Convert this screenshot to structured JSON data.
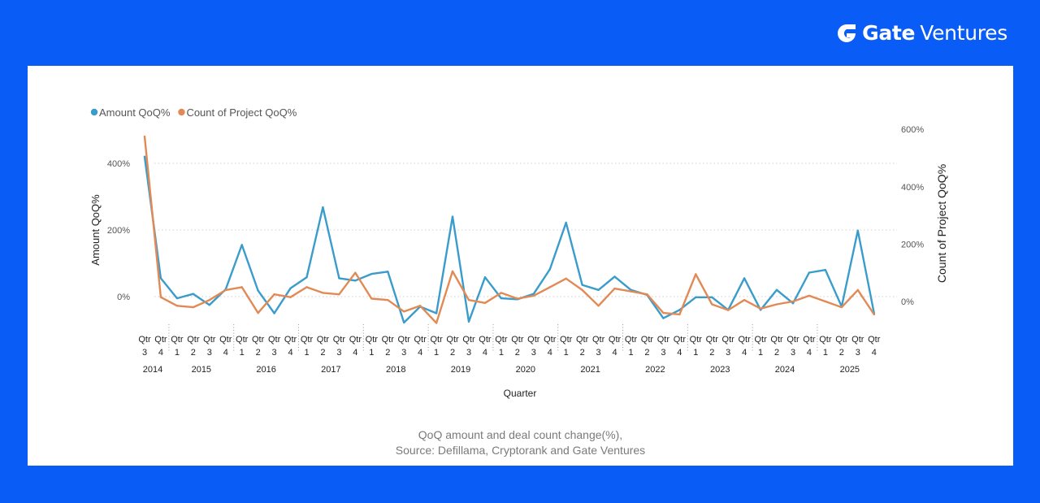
{
  "brand": {
    "strong": "Gate",
    "light": "Ventures"
  },
  "caption": {
    "line1": "QoQ amount and deal count change(%),",
    "line2": "Source: Defillama, Cryptorank and Gate Ventures"
  },
  "chart_data": {
    "type": "line",
    "title": "",
    "xlabel": "Quarter",
    "ylabel_left": "Amount QoQ%",
    "ylabel_right": "Count of Project QoQ%",
    "legend_position": "top-left",
    "grid": true,
    "y_left_ticks": [
      0,
      200,
      400
    ],
    "y_left_tick_labels": [
      "0%",
      "200%",
      "400%"
    ],
    "y_right_ticks": [
      0,
      200,
      400,
      600
    ],
    "y_right_tick_labels": [
      "0%",
      "200%",
      "400%",
      "600%"
    ],
    "quarter_prefix": "Qtr",
    "quarters": [
      "Qtr 3",
      "Qtr 4",
      "Qtr 1",
      "Qtr 2",
      "Qtr 3",
      "Qtr 4",
      "Qtr 1",
      "Qtr 2",
      "Qtr 3",
      "Qtr 4",
      "Qtr 1",
      "Qtr 2",
      "Qtr 3",
      "Qtr 4",
      "Qtr 1",
      "Qtr 2",
      "Qtr 3",
      "Qtr 4",
      "Qtr 1",
      "Qtr 2",
      "Qtr 3",
      "Qtr 4",
      "Qtr 1",
      "Qtr 2",
      "Qtr 3",
      "Qtr 4",
      "Qtr 1",
      "Qtr 2",
      "Qtr 3",
      "Qtr 4",
      "Qtr 1",
      "Qtr 2",
      "Qtr 3",
      "Qtr 4",
      "Qtr 1",
      "Qtr 2",
      "Qtr 3",
      "Qtr 4",
      "Qtr 1",
      "Qtr 2",
      "Qtr 3",
      "Qtr 4",
      "Qtr 1",
      "Qtr 2",
      "Qtr 3",
      "Qtr 4"
    ],
    "years": [
      {
        "label": "2014",
        "count": 2
      },
      {
        "label": "2015",
        "count": 4
      },
      {
        "label": "2016",
        "count": 4
      },
      {
        "label": "2017",
        "count": 4
      },
      {
        "label": "2018",
        "count": 4
      },
      {
        "label": "2019",
        "count": 4
      },
      {
        "label": "2020",
        "count": 4
      },
      {
        "label": "2021",
        "count": 4
      },
      {
        "label": "2022",
        "count": 4
      },
      {
        "label": "2023",
        "count": 4
      },
      {
        "label": "2024",
        "count": 4
      },
      {
        "label": "2025",
        "count": 4
      }
    ],
    "series": [
      {
        "name": "Amount QoQ%",
        "axis": "left",
        "color": "#3a9ccb",
        "values": [
          420,
          55,
          -5,
          8,
          -25,
          22,
          155,
          18,
          -50,
          25,
          58,
          268,
          55,
          48,
          68,
          75,
          -78,
          -30,
          -50,
          240,
          -75,
          58,
          -5,
          -8,
          8,
          82,
          222,
          35,
          20,
          60,
          20,
          5,
          -65,
          -40,
          -2,
          -2,
          -40,
          55,
          -40,
          20,
          -20,
          72,
          80,
          -30,
          198,
          -50
        ]
      },
      {
        "name": "Count of Project QoQ%",
        "axis": "right",
        "color": "#e28a55",
        "values": [
          575,
          15,
          -15,
          -20,
          5,
          40,
          50,
          -40,
          25,
          15,
          50,
          30,
          25,
          100,
          10,
          5,
          -35,
          -15,
          -75,
          105,
          5,
          -5,
          30,
          10,
          20,
          50,
          80,
          40,
          -15,
          45,
          35,
          25,
          -40,
          -45,
          95,
          -10,
          -30,
          5,
          -25,
          -10,
          0,
          20,
          0,
          -20,
          40,
          -45
        ]
      }
    ]
  }
}
